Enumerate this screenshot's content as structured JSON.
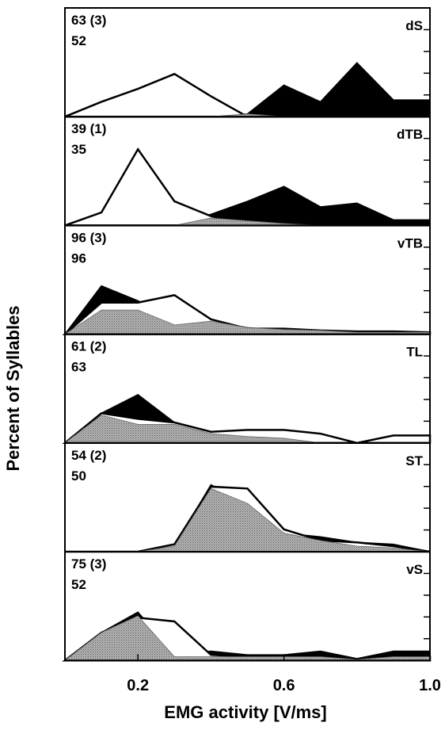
{
  "chart_data": {
    "type": "area",
    "ylabel": "Percent of Syllables",
    "xlabel": "EMG activity [V/ms]",
    "xlim": [
      0.0,
      1.0
    ],
    "xticks": [
      0.2,
      0.6,
      1.0
    ],
    "xtick_labels": [
      "0.2",
      "0.6",
      "1.0"
    ],
    "ylim": [
      0,
      5
    ],
    "x": [
      0.0,
      0.1,
      0.2,
      0.3,
      0.4,
      0.5,
      0.6,
      0.7,
      0.8,
      0.9,
      1.0
    ],
    "panels": [
      {
        "label": "dS",
        "count_a": "63",
        "count_b": "(3)",
        "count_c": "52",
        "series": [
          {
            "style": "black-fill",
            "values": [
              0,
              0,
              0,
              0,
              0,
              0.15,
              1.7,
              0.8,
              2.9,
              0.9,
              0.9
            ]
          },
          {
            "style": "white-outline",
            "values": [
              0,
              0.8,
              1.5,
              2.3,
              1.1,
              0,
              0,
              0,
              0,
              0,
              0
            ]
          },
          {
            "style": "gray-fill",
            "values": [
              0,
              0,
              0,
              0,
              0,
              0.15,
              0,
              0,
              0,
              0,
              0
            ]
          }
        ]
      },
      {
        "label": "dTB",
        "count_a": "39",
        "count_b": "(1)",
        "count_c": "35",
        "series": [
          {
            "style": "black-fill",
            "values": [
              0,
              0,
              0,
              0,
              0.6,
              1.3,
              2.1,
              1.0,
              1.2,
              0.3,
              0.3
            ]
          },
          {
            "style": "white-outline",
            "values": [
              0,
              0.7,
              4.1,
              1.3,
              0.5,
              0,
              0,
              0,
              0,
              0,
              0
            ]
          },
          {
            "style": "gray-fill",
            "values": [
              0,
              0,
              0,
              0,
              0.4,
              0.25,
              0.1,
              0,
              0,
              0,
              0
            ]
          }
        ]
      },
      {
        "label": "vTB",
        "count_a": "96",
        "count_b": "(3)",
        "count_c": "96",
        "series": [
          {
            "style": "black-fill",
            "values": [
              0,
              2.6,
              1.8,
              0.8,
              0.7,
              0.35,
              0.2,
              0.2,
              0.1,
              0.1,
              0.1
            ]
          },
          {
            "style": "white-outline",
            "values": [
              0,
              1.7,
              1.7,
              2.1,
              0.8,
              0.3,
              0.3,
              0.2,
              0.15,
              0.15,
              0.1
            ]
          },
          {
            "style": "gray-fill",
            "values": [
              0,
              1.3,
              1.3,
              0.5,
              0.7,
              0.35,
              0.25,
              0.2,
              0.1,
              0.1,
              0.1
            ]
          }
        ]
      },
      {
        "label": "TL",
        "count_a": "61",
        "count_b": "(2)",
        "count_c": "63",
        "series": [
          {
            "style": "black-fill",
            "values": [
              0,
              1.6,
              2.6,
              1.1,
              0.6,
              0.5,
              0.3,
              0.1,
              0,
              0,
              0
            ]
          },
          {
            "style": "white-outline",
            "values": [
              0,
              1.6,
              1.3,
              1.1,
              0.6,
              0.7,
              0.7,
              0.5,
              0,
              0.4,
              0.4
            ]
          },
          {
            "style": "gray-fill",
            "values": [
              0,
              1.5,
              1.0,
              1.0,
              0.5,
              0.35,
              0.25,
              0,
              0,
              0,
              0
            ]
          }
        ]
      },
      {
        "label": "ST",
        "count_a": "54",
        "count_b": "(2)",
        "count_c": "50",
        "series": [
          {
            "style": "black-fill",
            "values": [
              0,
              0,
              0,
              0.3,
              3.6,
              2.6,
              1.0,
              0.8,
              0.5,
              0.4,
              0
            ]
          },
          {
            "style": "white-outline",
            "values": [
              0,
              0,
              0,
              0.4,
              3.5,
              3.4,
              1.2,
              0.6,
              0.5,
              0.3,
              0
            ]
          },
          {
            "style": "gray-fill",
            "values": [
              0,
              0,
              0,
              0.3,
              3.4,
              2.6,
              1.0,
              0.6,
              0.3,
              0.2,
              0
            ]
          }
        ]
      },
      {
        "label": "vS",
        "count_a": "75",
        "count_b": "(3)",
        "count_c": "52",
        "series": [
          {
            "style": "black-fill",
            "values": [
              0,
              1.5,
              2.6,
              0.3,
              0.5,
              0.3,
              0.3,
              0.5,
              0.1,
              0.5,
              0.5
            ]
          },
          {
            "style": "white-outline",
            "values": [
              0,
              1.5,
              2.3,
              2.1,
              0.3,
              0.2,
              0.1,
              0.1,
              0,
              0.2,
              0.2
            ]
          },
          {
            "style": "gray-fill",
            "values": [
              0,
              1.5,
              2.4,
              0.2,
              0.2,
              0.2,
              0.2,
              0.2,
              0.05,
              0.2,
              0.2
            ]
          }
        ]
      }
    ]
  }
}
